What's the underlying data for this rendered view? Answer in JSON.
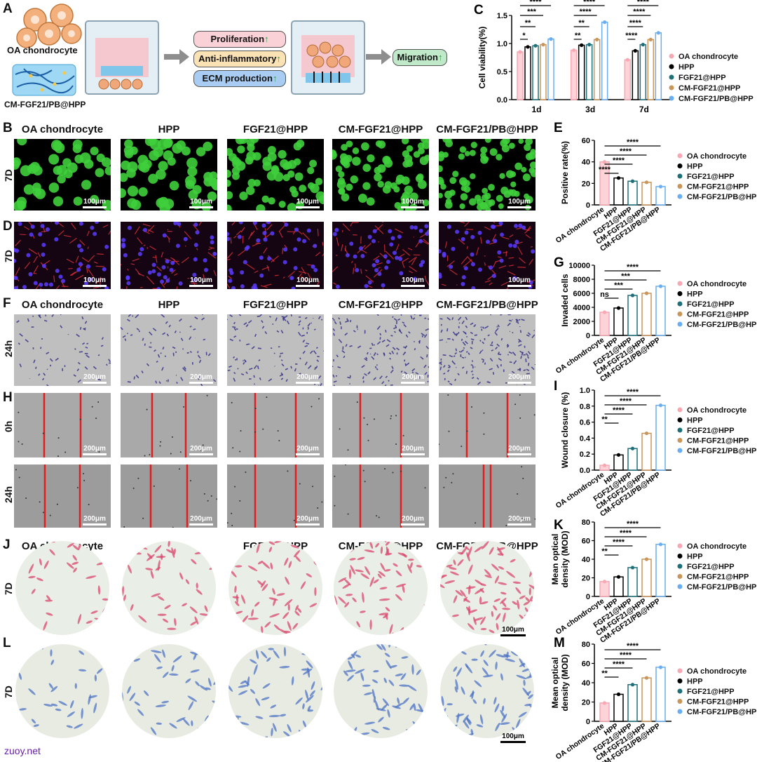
{
  "panelA": {
    "letter": "A",
    "cell_label": "OA chondrocyte",
    "hydrogel_label": "CM-FGF21/PB@HPP",
    "outcomes": [
      "Proliferation",
      "Anti-inflammatory",
      "ECM production"
    ],
    "migration": "Migration",
    "up_arrow": "↑",
    "colors": {
      "prolif": "#f9d1d6",
      "anti": "#fbe2b4",
      "ecm": "#a9cdf2",
      "mig": "#bfe9c9",
      "arrow": "#8e8e8e"
    }
  },
  "groups": [
    "OA chondrocyte",
    "HPP",
    "FGF21@HPP",
    "CM-FGF21@HPP",
    "CM-FGF21/PB@HPP"
  ],
  "group_colors": [
    "#f7a8b3",
    "#000000",
    "#1f6f78",
    "#c8965a",
    "#6aaef0"
  ],
  "image_rows": {
    "B": {
      "letter": "B",
      "row_label": "7D",
      "scale": "100μm"
    },
    "D": {
      "letter": "D",
      "row_label": "7D",
      "scale": "100μm"
    },
    "F": {
      "letter": "F",
      "row_label": "24h",
      "scale": "200μm"
    },
    "H0": {
      "letter": "H",
      "row_label": "0h",
      "scale": "200μm"
    },
    "H24": {
      "row_label": "24h",
      "scale": "200μm"
    },
    "J": {
      "letter": "J",
      "row_label": "7D",
      "scale": "100μm"
    },
    "L": {
      "letter": "L",
      "row_label": "7D",
      "scale": "100μm"
    }
  },
  "watermark": "zuoy.net",
  "chart_data": [
    {
      "panel": "C",
      "type": "bar",
      "categories": [
        "1d",
        "3d",
        "7d"
      ],
      "ylabel": "Cell viability(%)",
      "ylim": [
        0,
        1.5
      ],
      "yticks": [
        "0.0",
        "0.5",
        "1.0",
        "1.5"
      ],
      "series": [
        {
          "name": "OA chondrocyte",
          "values": [
            0.85,
            0.88,
            0.71
          ]
        },
        {
          "name": "HPP",
          "values": [
            0.94,
            0.97,
            0.87
          ]
        },
        {
          "name": "FGF21@HPP",
          "values": [
            0.96,
            0.98,
            0.98
          ]
        },
        {
          "name": "CM-FGF21@HPP",
          "values": [
            0.98,
            1.07,
            1.07
          ]
        },
        {
          "name": "CM-FGF21/PB@HPP",
          "values": [
            1.08,
            1.38,
            1.19
          ]
        }
      ],
      "significance": [
        "*",
        "**",
        "***",
        "****",
        "**",
        "**",
        "****",
        "****",
        "****",
        "****",
        "****",
        "****"
      ]
    },
    {
      "panel": "E",
      "type": "bar",
      "ylabel": "Positive rate(%)",
      "ylim": [
        0,
        60
      ],
      "yticks": [
        "0",
        "20",
        "40",
        "60"
      ],
      "values": [
        40,
        25,
        22,
        21,
        17
      ],
      "significance": [
        "****",
        "****",
        "****",
        "****"
      ]
    },
    {
      "panel": "G",
      "type": "bar",
      "ylabel": "Invaded cells",
      "ylim": [
        0,
        10000
      ],
      "yticks": [
        "0",
        "2000",
        "4000",
        "6000",
        "8000",
        "10000"
      ],
      "values": [
        3300,
        3900,
        5700,
        6000,
        7000
      ],
      "significance": [
        "ns",
        "***",
        "***",
        "****"
      ]
    },
    {
      "panel": "I",
      "type": "bar",
      "ylabel": "Wound closure (%)",
      "ylim": [
        0,
        1.0
      ],
      "yticks": [
        "0.0",
        "0.2",
        "0.4",
        "0.6",
        "0.8",
        "1.0"
      ],
      "values": [
        0.06,
        0.19,
        0.27,
        0.46,
        0.81
      ],
      "significance": [
        "**",
        "****",
        "****",
        "****"
      ]
    },
    {
      "panel": "K",
      "type": "bar",
      "ylabel": "Mean optical density (MOD)",
      "ylim": [
        0,
        80
      ],
      "yticks": [
        "0",
        "20",
        "40",
        "60",
        "80"
      ],
      "values": [
        16,
        21,
        31,
        40,
        56
      ],
      "significance": [
        "**",
        "****",
        "****",
        "****"
      ]
    },
    {
      "panel": "M",
      "type": "bar",
      "ylabel": "Mean optical density (MOD)",
      "ylim": [
        0,
        80
      ],
      "yticks": [
        "0",
        "20",
        "40",
        "60",
        "80"
      ],
      "values": [
        19,
        28,
        38,
        45,
        56
      ],
      "significance": [
        "**",
        "****",
        "****",
        "****"
      ]
    }
  ]
}
